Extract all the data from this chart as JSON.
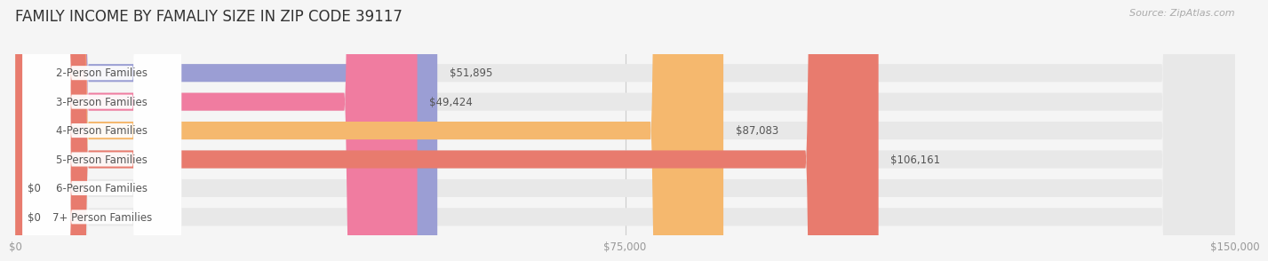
{
  "title": "FAMILY INCOME BY FAMALIY SIZE IN ZIP CODE 39117",
  "source": "Source: ZipAtlas.com",
  "categories": [
    "2-Person Families",
    "3-Person Families",
    "4-Person Families",
    "5-Person Families",
    "6-Person Families",
    "7+ Person Families"
  ],
  "values": [
    51895,
    49424,
    87083,
    106161,
    0,
    0
  ],
  "bar_colors": [
    "#9b9ed4",
    "#f07ca0",
    "#f5b86e",
    "#e87b6e",
    "#a8bce0",
    "#c9b8d8"
  ],
  "value_labels": [
    "$51,895",
    "$49,424",
    "$87,083",
    "$106,161",
    "$0",
    "$0"
  ],
  "xlim": [
    0,
    150000
  ],
  "xticks": [
    0,
    75000,
    150000
  ],
  "xticklabels": [
    "$0",
    "$75,000",
    "$150,000"
  ],
  "background_color": "#f5f5f5",
  "bar_background_color": "#e8e8e8",
  "title_fontsize": 12,
  "label_fontsize": 8.5,
  "value_fontsize": 8.5,
  "bar_height": 0.62
}
